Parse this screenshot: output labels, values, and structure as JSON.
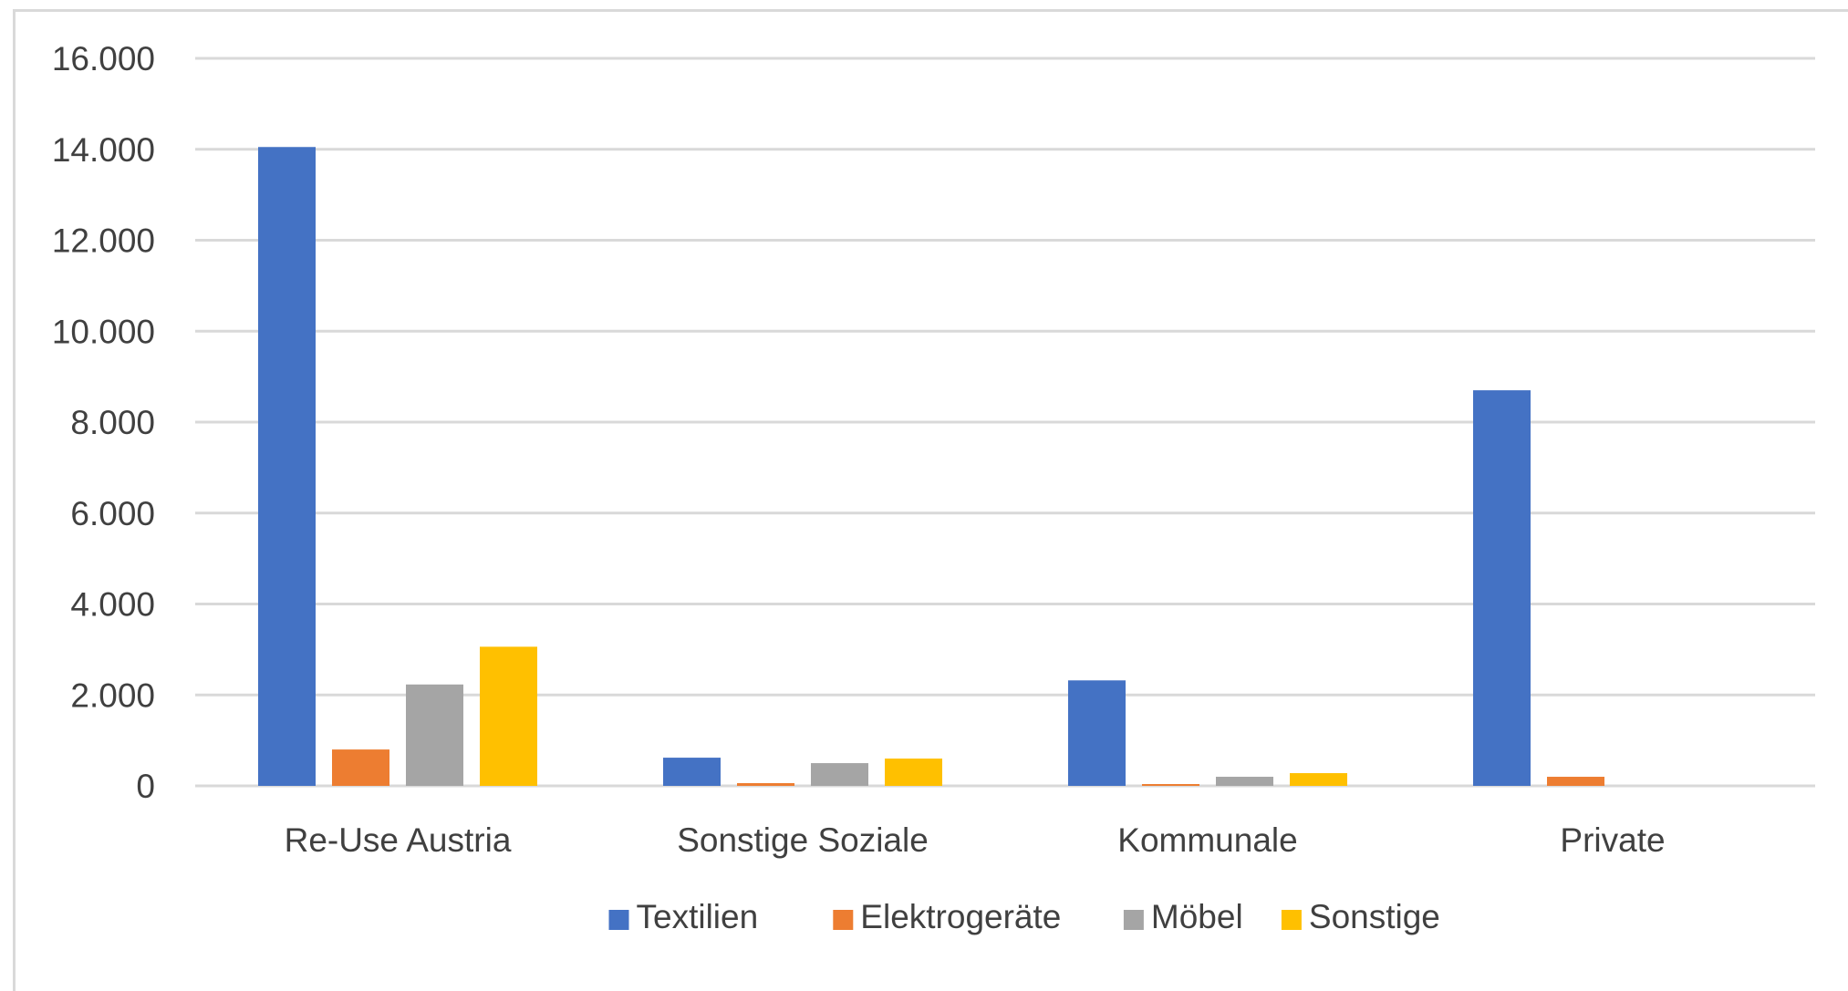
{
  "chart_data": {
    "type": "bar",
    "categories": [
      "Re-Use Austria",
      "Sonstige Soziale",
      "Kommunale",
      "Private"
    ],
    "series": [
      {
        "name": "Textilien",
        "color": "#4472c4",
        "values": [
          14050,
          620,
          2320,
          8700
        ]
      },
      {
        "name": "Elektrogeräte",
        "color": "#ed7d31",
        "values": [
          800,
          60,
          40,
          200
        ]
      },
      {
        "name": "Möbel",
        "color": "#a5a5a5",
        "values": [
          2230,
          500,
          200,
          0
        ]
      },
      {
        "name": "Sonstige",
        "color": "#ffc000",
        "values": [
          3060,
          600,
          280,
          0
        ]
      }
    ],
    "ylim": [
      0,
      16000
    ],
    "yticks": [
      0,
      2000,
      4000,
      6000,
      8000,
      10000,
      12000,
      14000,
      16000
    ],
    "ytick_labels": [
      "0",
      "2.000",
      "4.000",
      "6.000",
      "8.000",
      "10.000",
      "12.000",
      "14.000",
      "16.000"
    ],
    "grid": true,
    "legend_position": "bottom"
  }
}
